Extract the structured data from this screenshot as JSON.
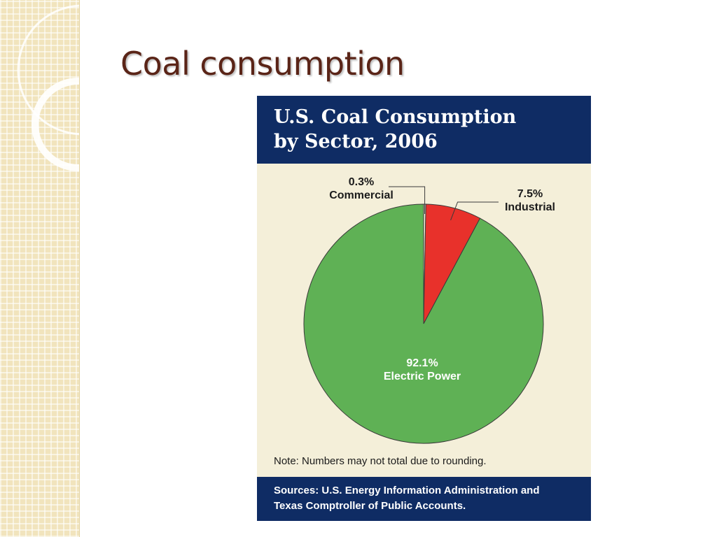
{
  "slide": {
    "title": "Coal consumption"
  },
  "figure": {
    "title_lines": [
      "U.S. Coal Consumption",
      "by Sector, 2006"
    ],
    "note": "Note: Numbers may not total due to rounding.",
    "sources_lines": [
      "Sources: U.S. Energy Information Administration and",
      "Texas Comptroller of Public Accounts."
    ]
  },
  "colors": {
    "header_bg": "#0f2c64",
    "panel_bg": "#f4efd9",
    "electric_power": "#5fb155",
    "industrial": "#e8312b",
    "commercial": "#f4efd9",
    "title_text": "#5a2417"
  },
  "chart_data": {
    "type": "pie",
    "title": "U.S. Coal Consumption by Sector, 2006",
    "slices": [
      {
        "label": "Commercial",
        "value": 0.3,
        "value_label": "0.3%",
        "color": "#f4efd9"
      },
      {
        "label": "Industrial",
        "value": 7.5,
        "value_label": "7.5%",
        "color": "#e8312b"
      },
      {
        "label": "Electric Power",
        "value": 92.1,
        "value_label": "92.1%",
        "color": "#5fb155"
      }
    ],
    "start_angle_deg": 0,
    "direction": "clockwise",
    "legend": "none",
    "annotations": "leader lines for Commercial and Industrial"
  }
}
